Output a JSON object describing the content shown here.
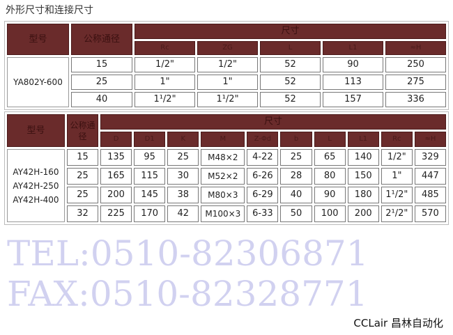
{
  "title": "外形尺寸和连接尺寸",
  "table1": {
    "headers": {
      "model": "型号",
      "dn": "公称通径",
      "size": "尺寸",
      "cols": [
        "Rc",
        "ZG",
        "L",
        "L1",
        "≈H"
      ]
    },
    "model": "YA802Y-600",
    "rows": [
      [
        "15",
        "1/2\"",
        "1/2\"",
        "52",
        "90",
        "250"
      ],
      [
        "25",
        "1\"",
        "1\"",
        "52",
        "113",
        "275"
      ],
      [
        "40",
        "1¹/2\"",
        "1¹/2\"",
        "52",
        "157",
        "336"
      ]
    ]
  },
  "table2": {
    "headers": {
      "model": "型号",
      "dn": "公称通径",
      "size": "尺寸",
      "cols": [
        "D",
        "D1",
        "K",
        "M",
        "Z-Φd",
        "b",
        "L",
        "L1",
        "Rc",
        "≈H"
      ]
    },
    "models": [
      "AY42H-160",
      "AY42H-250",
      "AY42H-400"
    ],
    "rows": [
      [
        "15",
        "135",
        "95",
        "25",
        "M48×2",
        "4-22",
        "25",
        "65",
        "140",
        "1/2\"",
        "329"
      ],
      [
        "25",
        "165",
        "115",
        "30",
        "M52×2",
        "6-26",
        "28",
        "80",
        "150",
        "1\"",
        "447"
      ],
      [
        "25",
        "200",
        "145",
        "38",
        "M80×3",
        "6-29",
        "40",
        "90",
        "180",
        "1¹/2\"",
        "485"
      ],
      [
        "32",
        "225",
        "170",
        "42",
        "M100×3",
        "6-33",
        "50",
        "100",
        "200",
        "2¹/2\"",
        "570"
      ]
    ]
  },
  "watermark": {
    "tel": "TEL:0510-82306871",
    "fax": "FAX:0510-82328771",
    "logo": "CCLair 昌林自动化"
  },
  "colors": {
    "header": "#6a2b2b"
  }
}
